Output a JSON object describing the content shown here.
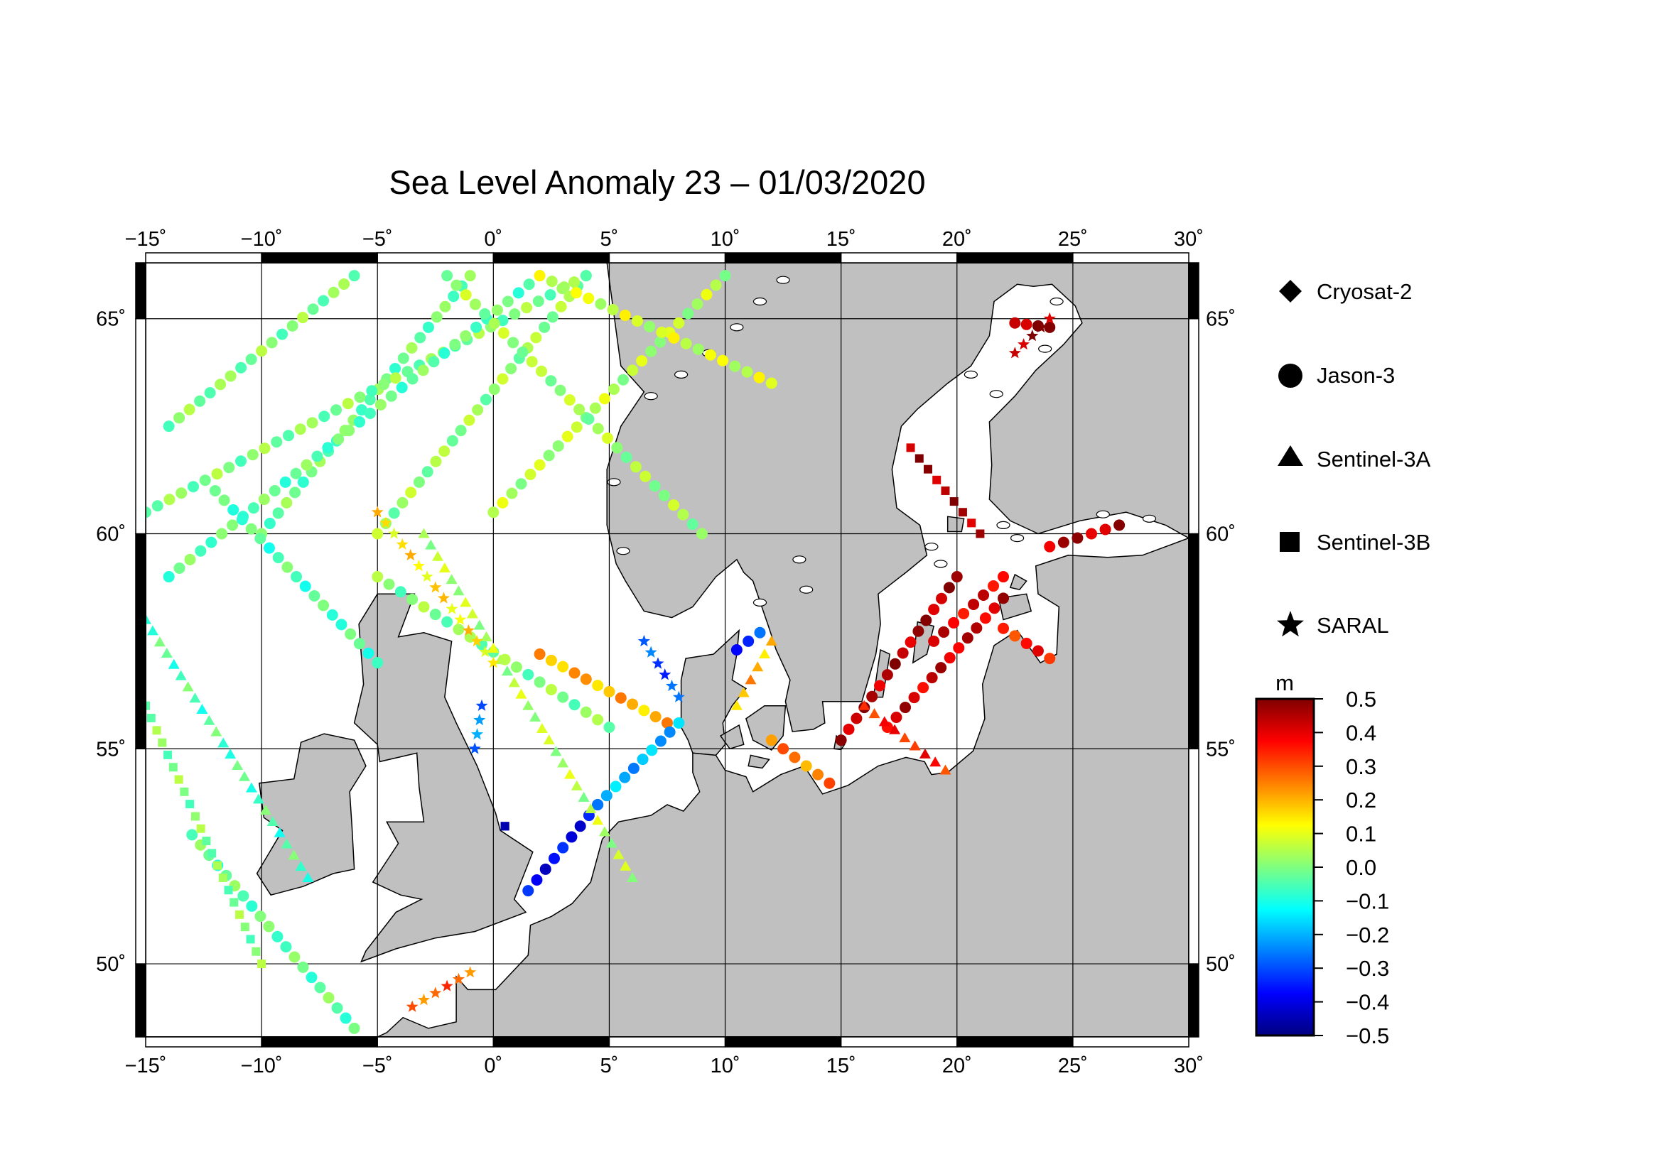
{
  "title": "Sea Level Anomaly 23 – 01/03/2020",
  "map": {
    "lon_range": [
      -15,
      30
    ],
    "lat_range": [
      48.3,
      66.3
    ],
    "lon_ticks": [
      -15,
      -10,
      -5,
      0,
      5,
      10,
      15,
      20,
      25,
      30
    ],
    "lat_ticks": [
      50,
      55,
      60,
      65
    ],
    "lon_tick_labels": [
      "−15˚",
      "−10˚",
      "−5˚",
      "0˚",
      "5˚",
      "10˚",
      "15˚",
      "20˚",
      "25˚",
      "30˚"
    ],
    "lat_tick_labels": [
      "50˚",
      "55˚",
      "60˚",
      "65˚"
    ],
    "land_color": "#c0c0c0",
    "sea_color": "#ffffff",
    "grid": true
  },
  "legend": {
    "items": [
      {
        "label": "Cryosat-2",
        "marker": "diamond-icon"
      },
      {
        "label": "Jason-3",
        "marker": "circle-icon"
      },
      {
        "label": "Sentinel-3A",
        "marker": "triangle-icon"
      },
      {
        "label": "Sentinel-3B",
        "marker": "square-icon"
      },
      {
        "label": "SARAL",
        "marker": "star-icon"
      }
    ]
  },
  "colorbar": {
    "unit": "m",
    "min": -0.5,
    "max": 0.5,
    "tick_labels": [
      "0.5",
      "0.4",
      "0.3",
      "0.2",
      "0.1",
      "0.0",
      "−0.1",
      "−0.2",
      "−0.3",
      "−0.4",
      "−0.5"
    ],
    "colors": [
      "#00007f",
      "#0000ff",
      "#007fff",
      "#00ffff",
      "#7fff7f",
      "#ffff00",
      "#ff7f00",
      "#ff0000",
      "#7f0000"
    ]
  },
  "chart_data": {
    "type": "scatter",
    "title": "Sea Level Anomaly 23 – 01/03/2020",
    "xlabel": "",
    "ylabel": "",
    "x_range": [
      -15,
      30
    ],
    "y_range": [
      48.3,
      66.3
    ],
    "value_unit": "m",
    "value_range": [
      -0.5,
      0.5
    ],
    "tracks": [
      {
        "satellite": "Jason-3",
        "lon": [
          -14,
          -6
        ],
        "lat": [
          62.5,
          66
        ],
        "sla": 0.0
      },
      {
        "satellite": "Jason-3",
        "lon": [
          -10,
          -1
        ],
        "lat": [
          60,
          66
        ],
        "sla": -0.02
      },
      {
        "satellite": "Jason-3",
        "lon": [
          -5,
          4
        ],
        "lat": [
          60,
          66
        ],
        "sla": 0.02
      },
      {
        "satellite": "Jason-3",
        "lon": [
          0,
          10
        ],
        "lat": [
          60.5,
          66
        ],
        "sla": 0.05
      },
      {
        "satellite": "Jason-3",
        "lon": [
          -15,
          4
        ],
        "lat": [
          60.5,
          66
        ],
        "sla": 0.0
      },
      {
        "satellite": "Jason-3",
        "lon": [
          -14,
          2
        ],
        "lat": [
          59,
          66
        ],
        "sla": -0.03
      },
      {
        "satellite": "Jason-3",
        "lon": [
          -2,
          9
        ],
        "lat": [
          66,
          60
        ],
        "sla": 0.03
      },
      {
        "satellite": "Jason-3",
        "lon": [
          2,
          12
        ],
        "lat": [
          66,
          63.5
        ],
        "sla": 0.08
      },
      {
        "satellite": "Jason-3",
        "lon": [
          -12,
          -5
        ],
        "lat": [
          61,
          57
        ],
        "sla": -0.05
      },
      {
        "satellite": "Jason-3",
        "lon": [
          -5,
          5
        ],
        "lat": [
          59,
          55.5
        ],
        "sla": 0.0
      },
      {
        "satellite": "Jason-3",
        "lon": [
          2,
          7.5
        ],
        "lat": [
          57.2,
          55.6
        ],
        "sla": 0.2
      },
      {
        "satellite": "Jason-3",
        "lon": [
          1.5,
          4.5
        ],
        "lat": [
          51.7,
          53.7
        ],
        "sla": -0.38
      },
      {
        "satellite": "Jason-3",
        "lon": [
          4.5,
          8
        ],
        "lat": [
          53.7,
          55.6
        ],
        "sla": -0.2
      },
      {
        "satellite": "Jason-3",
        "lon": [
          10.5,
          11.5
        ],
        "lat": [
          57.3,
          57.7
        ],
        "sla": -0.32
      },
      {
        "satellite": "Jason-3",
        "lon": [
          12,
          14.5
        ],
        "lat": [
          55.2,
          54.2
        ],
        "sla": 0.25
      },
      {
        "satellite": "Jason-3",
        "lon": [
          15,
          20
        ],
        "lat": [
          55.2,
          59
        ],
        "sla": 0.45
      },
      {
        "satellite": "Jason-3",
        "lon": [
          17,
          22
        ],
        "lat": [
          55.5,
          58.5
        ],
        "sla": 0.42
      },
      {
        "satellite": "Jason-3",
        "lon": [
          19,
          22
        ],
        "lat": [
          57.5,
          59
        ],
        "sla": 0.4
      },
      {
        "satellite": "Jason-3",
        "lon": [
          22,
          24
        ],
        "lat": [
          57.8,
          57.1
        ],
        "sla": 0.35
      },
      {
        "satellite": "Jason-3",
        "lon": [
          24,
          27
        ],
        "lat": [
          59.7,
          60.2
        ],
        "sla": 0.44
      },
      {
        "satellite": "Jason-3",
        "lon": [
          22.5,
          24
        ],
        "lat": [
          64.9,
          64.8
        ],
        "sla": 0.46
      },
      {
        "satellite": "Jason-3",
        "lon": [
          -13,
          -6
        ],
        "lat": [
          53,
          48.5
        ],
        "sla": -0.03
      },
      {
        "satellite": "Sentinel-3A",
        "lon": [
          -15,
          -8
        ],
        "lat": [
          58,
          52
        ],
        "sla": -0.05
      },
      {
        "satellite": "Sentinel-3A",
        "lon": [
          -3,
          6
        ],
        "lat": [
          60,
          52
        ],
        "sla": 0.05
      },
      {
        "satellite": "Sentinel-3A",
        "lon": [
          16,
          19.5
        ],
        "lat": [
          56,
          54.5
        ],
        "sla": 0.35
      },
      {
        "satellite": "Sentinel-3A",
        "lon": [
          10.5,
          12
        ],
        "lat": [
          56,
          57.5
        ],
        "sla": 0.2
      },
      {
        "satellite": "Sentinel-3B",
        "lon": [
          -15,
          -10
        ],
        "lat": [
          56,
          50
        ],
        "sla": 0.0
      },
      {
        "satellite": "Sentinel-3B",
        "lon": [
          18,
          21
        ],
        "lat": [
          62,
          60
        ],
        "sla": 0.46
      },
      {
        "satellite": "Sentinel-3B",
        "lon": [
          0.5,
          0.5
        ],
        "lat": [
          53.2,
          53.2
        ],
        "sla": -0.5
      },
      {
        "satellite": "SARAL",
        "lon": [
          6.5,
          8
        ],
        "lat": [
          57.5,
          56.2
        ],
        "sla": -0.3
      },
      {
        "satellite": "SARAL",
        "lon": [
          -0.8,
          -0.5
        ],
        "lat": [
          55,
          56
        ],
        "sla": -0.25
      },
      {
        "satellite": "SARAL",
        "lon": [
          -5,
          0
        ],
        "lat": [
          60.5,
          57
        ],
        "sla": 0.15
      },
      {
        "satellite": "SARAL",
        "lon": [
          -3.5,
          -1
        ],
        "lat": [
          49,
          49.8
        ],
        "sla": 0.28
      },
      {
        "satellite": "SARAL",
        "lon": [
          22.5,
          24
        ],
        "lat": [
          64.2,
          65
        ],
        "sla": 0.46
      }
    ]
  }
}
